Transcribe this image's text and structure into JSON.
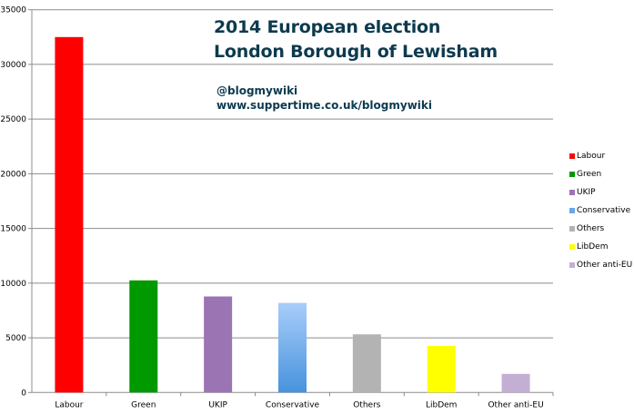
{
  "chart_data": {
    "type": "bar",
    "title": "2014 European election",
    "subtitle": "London Borough of Lewisham",
    "annotations": [
      "@blogmywiki",
      "www.suppertime.co.uk/blogmywiki"
    ],
    "categories": [
      "Labour",
      "Green",
      "UKIP",
      "Conservative",
      "Others",
      "LibDem",
      "Other anti-EU"
    ],
    "values": [
      32500,
      10250,
      8780,
      8190,
      5320,
      4260,
      1700
    ],
    "colors": [
      "#ff0000",
      "#009900",
      "#9b74b4",
      "#6aa7ea",
      "#b3b3b3",
      "#ffff00",
      "#c4afd4"
    ],
    "ylim": [
      0,
      35000
    ],
    "yticks": [
      0,
      5000,
      10000,
      15000,
      20000,
      25000,
      30000,
      35000
    ],
    "xlabel": "",
    "ylabel": "",
    "grid": true,
    "legend": "right"
  }
}
